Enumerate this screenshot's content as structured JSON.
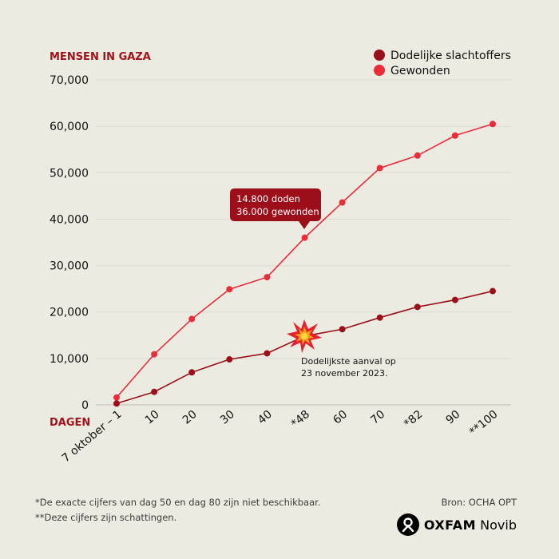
{
  "chart_data": {
    "type": "line",
    "title": "MENSEN IN GAZA",
    "xlabel": "DAGEN",
    "ylabel": "",
    "ylim": [
      0,
      70000
    ],
    "yticks": [
      0,
      10000,
      20000,
      30000,
      40000,
      50000,
      60000,
      70000
    ],
    "ytick_labels": [
      "0",
      "10,000",
      "20,000",
      "30,000",
      "40,000",
      "50,000",
      "60,000",
      "70,000"
    ],
    "categories": [
      "7 oktober – 1",
      "10",
      "20",
      "30",
      "40",
      "*48",
      "60",
      "70",
      "*82",
      "90",
      "**100"
    ],
    "grid": true,
    "legend_position": "top-right",
    "series": [
      {
        "name": "Dodelijke slachtoffers",
        "color": "#9b0e1a",
        "values": [
          300,
          2800,
          7000,
          9800,
          11100,
          14800,
          16300,
          18800,
          21100,
          22600,
          24500
        ]
      },
      {
        "name": "Gewonden",
        "color": "#ee2b3b",
        "values": [
          1600,
          10900,
          18500,
          24900,
          27500,
          36000,
          43600,
          51000,
          53700,
          58000,
          60500
        ]
      }
    ],
    "annotations": {
      "callout_lines": [
        "14.800 doden",
        "36.000 gewonden"
      ],
      "event_lines": [
        "Dodelijkste aanval op",
        "23 november 2023."
      ]
    }
  },
  "footnotes": [
    "*De exacte cijfers van dag 50 en dag 80 zijn niet beschikbaar.",
    "**Deze cijfers zijn schattingen."
  ],
  "source": "Bron: OCHA OPT",
  "brand": {
    "name_bold": "OXFAM",
    "name_rest": "Novib",
    "icon": "oxfam-logo-icon"
  }
}
